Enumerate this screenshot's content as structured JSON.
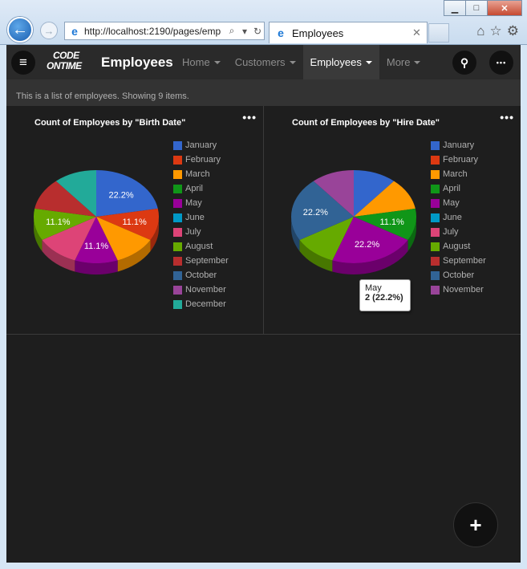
{
  "browser": {
    "url": "http://localhost:2190/pages/emp",
    "tab_title": "Employees",
    "min_glyph": "▁",
    "max_glyph": "□",
    "close_glyph": "✕",
    "back_glyph": "←",
    "fwd_glyph": "→",
    "ie_glyph": "e",
    "search_glyph": "⌕",
    "dropdown_glyph": "▾",
    "refresh_glyph": "↻",
    "tab_close_glyph": "✕",
    "home_glyph": "⌂",
    "fav_glyph": "☆",
    "tools_glyph": "⚙"
  },
  "app": {
    "title": "Employees",
    "logo_line1": "CODE",
    "logo_line2": "ONTIME",
    "hamburger_glyph": "≡",
    "search_glyph": "⚲",
    "more_glyph": "•••",
    "nav": [
      {
        "label": "Home",
        "active": false
      },
      {
        "label": "Customers",
        "active": false
      },
      {
        "label": "Employees",
        "active": true
      },
      {
        "label": "More",
        "active": false
      }
    ],
    "info": "This is a list of employees. Showing 9 items.",
    "fab_glyph": "+"
  },
  "charts": {
    "left_title": "Count of Employees by \"Birth Date\"",
    "right_title": "Count of Employees by \"Hire Date\"",
    "menu_glyph": "•••",
    "tooltip": {
      "label": "May",
      "value": "2 (22.2%)"
    }
  },
  "colors": {
    "January": "#3366cc",
    "February": "#dc3912",
    "March": "#ff9900",
    "April": "#109618",
    "May": "#990099",
    "June": "#0099c6",
    "July": "#dd4477",
    "August": "#66aa00",
    "September": "#b82e2e",
    "October": "#316395",
    "November": "#994499",
    "December": "#22aa99"
  },
  "chart_data": [
    {
      "type": "pie",
      "title": "Count of Employees by \"Birth Date\"",
      "legend": "right",
      "categories": [
        "January",
        "February",
        "March",
        "April",
        "May",
        "June",
        "July",
        "August",
        "September",
        "October",
        "November",
        "December"
      ],
      "values": [
        2,
        1,
        1,
        0,
        1,
        0,
        1,
        1,
        1,
        0,
        0,
        1
      ],
      "labels": [
        "22.2%",
        "11.1%",
        "",
        "",
        "11.1%",
        "",
        "",
        "11.1%",
        "",
        "",
        "",
        ""
      ]
    },
    {
      "type": "pie",
      "title": "Count of Employees by \"Hire Date\"",
      "legend": "right",
      "categories": [
        "January",
        "February",
        "March",
        "April",
        "May",
        "June",
        "July",
        "August",
        "September",
        "October",
        "November"
      ],
      "values": [
        1,
        0,
        1,
        1,
        2,
        0,
        0,
        1,
        0,
        2,
        1
      ],
      "labels": [
        "",
        "",
        "",
        "11.1%",
        "22.2%",
        "",
        "",
        "",
        "",
        "22.2%",
        ""
      ]
    }
  ]
}
